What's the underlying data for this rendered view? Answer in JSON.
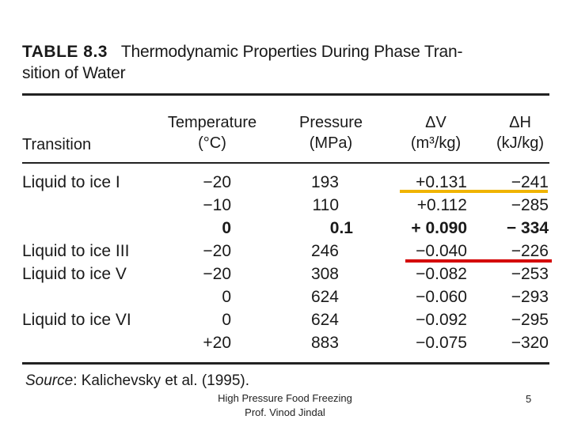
{
  "table": {
    "label": "TABLE 8.3",
    "caption_line1": "Thermodynamic Properties During Phase Tran-",
    "caption_line2": "sition of Water",
    "headers": {
      "transition": "Transition",
      "temp_1": "Temperature",
      "temp_2": "(°C)",
      "pres_1": "Pressure",
      "pres_2": "(MPa)",
      "dv_1": "ΔV",
      "dv_2": "(m³/kg)",
      "dh_1": "ΔH",
      "dh_2": "(kJ/kg)"
    },
    "rows": [
      {
        "transition": "Liquid to ice I",
        "temp": "−20",
        "pres": "193",
        "dv": "+0.131",
        "dh": "−241"
      },
      {
        "transition": "",
        "temp": "−10",
        "pres": "110",
        "dv": "+0.112",
        "dh": "−285"
      },
      {
        "transition": "",
        "temp": "0",
        "pres": "0.1",
        "dv": "+ 0.090",
        "dh": "− 334"
      },
      {
        "transition": "Liquid to ice III",
        "temp": "−20",
        "pres": "246",
        "dv": "−0.040",
        "dh": "−226"
      },
      {
        "transition": "Liquid to ice V",
        "temp": "−20",
        "pres": "308",
        "dv": "−0.082",
        "dh": "−253"
      },
      {
        "transition": "",
        "temp": "0",
        "pres": "624",
        "dv": "−0.060",
        "dh": "−293"
      },
      {
        "transition": "Liquid to ice VI",
        "temp": "0",
        "pres": "624",
        "dv": "−0.092",
        "dh": "−295"
      },
      {
        "transition": "",
        "temp": "+20",
        "pres": "883",
        "dv": "−0.075",
        "dh": "−320"
      }
    ],
    "source_label": "Source",
    "source_text": ": Kalichevsky et al. (1995)."
  },
  "highlight_colors": {
    "yellow": "#f0b400",
    "red": "#d40000"
  },
  "footer": {
    "line1": "High Pressure Food Freezing",
    "line2": "Prof. Vinod Jindal",
    "page_number": "5"
  }
}
